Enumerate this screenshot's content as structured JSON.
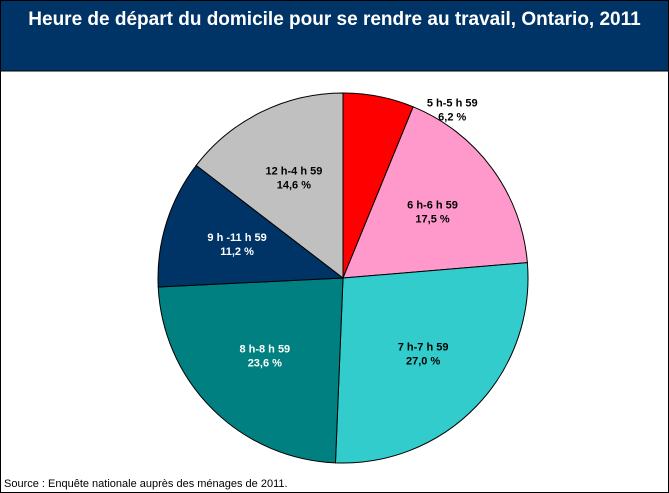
{
  "chart_data": {
    "type": "pie",
    "title": "Heure de départ du domicile pour se rendre au travail, Ontario, 2011",
    "categories": [
      "5 h-5 h 59",
      "6 h-6 h 59",
      "7 h-7 h 59",
      "8 h-8 h 59",
      "9 h -11 h 59",
      "12 h-4 h 59"
    ],
    "values": [
      6.2,
      17.5,
      27.0,
      23.6,
      11.2,
      14.6
    ],
    "value_labels": [
      "6,2 %",
      "17,5 %",
      "27,0 %",
      "23,6 %",
      "11,2 %",
      "14,6 %"
    ],
    "colors": [
      "#ff0000",
      "#ff99cc",
      "#33cccc",
      "#008080",
      "#003366",
      "#c0c0c0"
    ],
    "source": "Source : Enquête nationale auprès des ménages de 2011."
  }
}
